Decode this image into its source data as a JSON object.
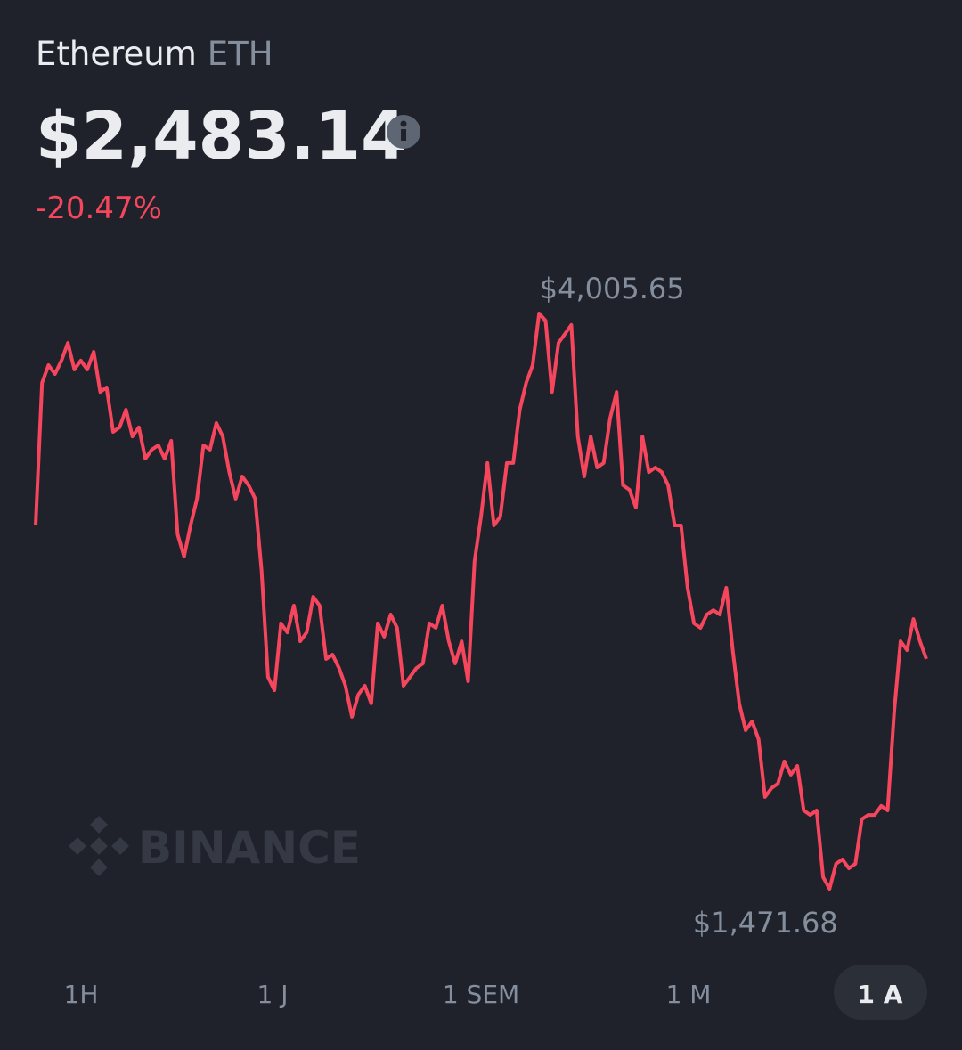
{
  "header": {
    "name": "Ethereum",
    "symbol": "ETH",
    "price": "$2,483.14",
    "change": "-20.47%"
  },
  "chart_data": {
    "type": "line",
    "color": "#f6465d",
    "values": [
      3072,
      3700,
      3778,
      3739,
      3798,
      3876,
      3759,
      3798,
      3759,
      3837,
      3660,
      3680,
      3484,
      3504,
      3582,
      3464,
      3504,
      3366,
      3406,
      3425,
      3366,
      3445,
      3033,
      2935,
      3072,
      3190,
      3425,
      3406,
      3523,
      3464,
      3307,
      3190,
      3288,
      3249,
      3190,
      2876,
      2405,
      2346,
      2641,
      2601,
      2719,
      2562,
      2601,
      2758,
      2719,
      2484,
      2503,
      2444,
      2366,
      2229,
      2327,
      2366,
      2288,
      2641,
      2582,
      2680,
      2621,
      2366,
      2405,
      2444,
      2464,
      2641,
      2621,
      2719,
      2562,
      2464,
      2562,
      2386,
      2915,
      3111,
      3347,
      3072,
      3111,
      3347,
      3347,
      3582,
      3700,
      3778,
      4005.65,
      3974,
      3660,
      3876,
      3915,
      3955,
      3464,
      3288,
      3464,
      3327,
      3347,
      3543,
      3660,
      3249,
      3229,
      3151,
      3464,
      3307,
      3327,
      3307,
      3249,
      3072,
      3072,
      2798,
      2641,
      2621,
      2680,
      2699,
      2680,
      2798,
      2523,
      2288,
      2170,
      2209,
      2131,
      1876,
      1915,
      1935,
      2033,
      1974,
      2013,
      1817,
      1797,
      1817,
      1523,
      1471.68,
      1582,
      1601,
      1562,
      1582,
      1778,
      1797,
      1797,
      1837,
      1817,
      2248,
      2562,
      2523,
      2660,
      2562,
      2484
    ],
    "ylim": [
      1471.68,
      4005.65
    ],
    "annotations": [
      {
        "label": "$4,005.65",
        "value": 4005.65
      },
      {
        "label": "$1,471.68",
        "value": 1471.68
      }
    ]
  },
  "watermark": "BINANCE",
  "tabs": [
    {
      "label": "1H",
      "selected": false
    },
    {
      "label": "1 J",
      "selected": false
    },
    {
      "label": "1 SEM",
      "selected": false
    },
    {
      "label": "1 M",
      "selected": false
    },
    {
      "label": "1 A",
      "selected": true
    }
  ]
}
